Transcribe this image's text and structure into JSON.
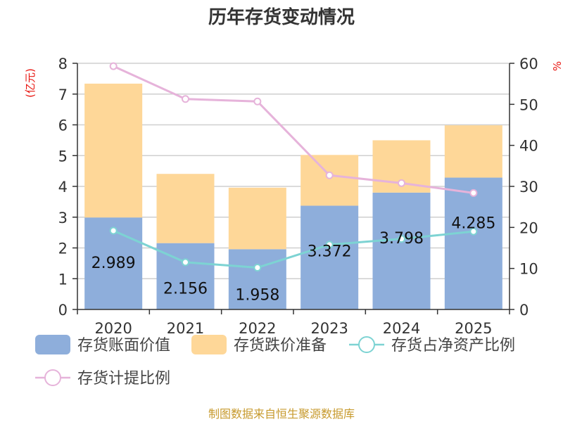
{
  "chart_data": {
    "type": "bar",
    "title": "历年存货变动情况",
    "categories": [
      "2020",
      "2021",
      "2022",
      "2023",
      "2024",
      "2025"
    ],
    "y_left": {
      "unit_label": "(亿元)",
      "range": [
        0,
        8
      ],
      "ticks": [
        "0",
        "1",
        "2",
        "3",
        "4",
        "5",
        "6",
        "7",
        "8"
      ]
    },
    "y_right": {
      "unit_label": "%",
      "range": [
        0,
        60
      ],
      "ticks": [
        "0",
        "10",
        "20",
        "30",
        "40",
        "50",
        "60"
      ]
    },
    "grid": true,
    "legend_position": "bottom",
    "series": [
      {
        "name": "存货账面价值",
        "type": "bar",
        "stack": "inventory",
        "axis": "left",
        "color": "#8eaedb",
        "values": [
          2.989,
          2.156,
          1.958,
          3.372,
          3.798,
          4.285
        ],
        "labels": [
          "2.989",
          "2.156",
          "1.958",
          "3.372",
          "3.798",
          "4.285"
        ]
      },
      {
        "name": "存货跌价准备",
        "type": "bar",
        "stack": "inventory",
        "axis": "left",
        "color": "#fed798",
        "values": [
          4.35,
          2.25,
          2.0,
          1.65,
          1.7,
          1.7
        ]
      },
      {
        "name": "存货占净资产比例",
        "type": "line",
        "axis": "right",
        "color": "#7dd3d3",
        "values": [
          19.2,
          11.5,
          10.2,
          15.8,
          17.2,
          19.0
        ]
      },
      {
        "name": "存货计提比例",
        "type": "line",
        "axis": "right",
        "color": "#e6b3da",
        "values": [
          59.3,
          51.3,
          50.7,
          32.7,
          30.8,
          28.4
        ]
      }
    ]
  },
  "footer": "制图数据来自恒生聚源数据库"
}
